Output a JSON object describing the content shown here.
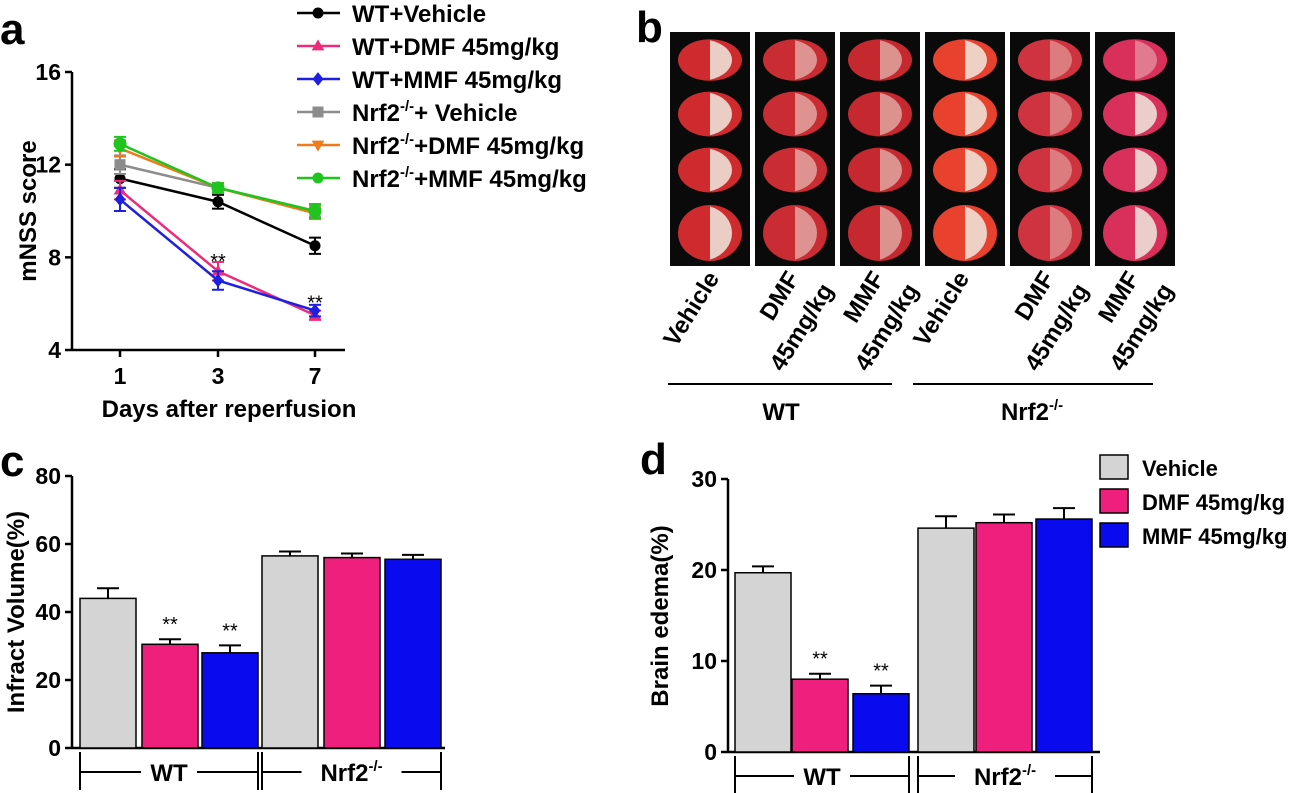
{
  "panels": {
    "a": {
      "letter": "a"
    },
    "b": {
      "letter": "b"
    },
    "c": {
      "letter": "c"
    },
    "d": {
      "letter": "d"
    }
  },
  "panel_b": {
    "wt_group_label": "WT",
    "ko_group_label": "Nrf2",
    "ko_group_sup": "-/-",
    "columns": [
      {
        "line1": "Vehicle",
        "line2": "",
        "tint": "#cf2a2e"
      },
      {
        "line1": "DMF",
        "line2": "45mg/kg",
        "tint": "#c92c32"
      },
      {
        "line1": "MMF",
        "line2": "45mg/kg",
        "tint": "#c5282f"
      },
      {
        "line1": "Vehicle",
        "line2": "",
        "tint": "#e8412e"
      },
      {
        "line1": "DMF",
        "line2": "45mg/kg",
        "tint": "#cf3340"
      },
      {
        "line1": "MMF",
        "line2": "45mg/kg",
        "tint": "#d8305a"
      }
    ],
    "colors": {
      "background": "#0a0a0a",
      "infarct": "#efeadf"
    }
  },
  "chart_data": [
    {
      "panel": "a",
      "type": "line",
      "ylabel": "mNSS  score",
      "xlabel": "Days after reperfusion",
      "categories": [
        "1",
        "3",
        "7"
      ],
      "ylim": [
        4,
        16
      ],
      "yticks": [
        "4",
        "8",
        "12",
        "16"
      ],
      "series": [
        {
          "name": "WT+Vehicle",
          "sup": "",
          "color": "#000000",
          "marker": "circle",
          "values": [
            11.4,
            10.4,
            8.5
          ],
          "errors": [
            0.4,
            0.3,
            0.35
          ]
        },
        {
          "name": "WT+DMF 45mg/kg",
          "sup": "",
          "color": "#ee2a7b",
          "marker": "triangle-up",
          "values": [
            10.9,
            7.4,
            5.5
          ],
          "errors": [
            0.4,
            0.4,
            0.2
          ]
        },
        {
          "name": "WT+MMF 45mg/kg",
          "sup": "",
          "color": "#1f1fe0",
          "marker": "diamond",
          "values": [
            10.5,
            7.0,
            5.7
          ],
          "errors": [
            0.5,
            0.4,
            0.25
          ]
        },
        {
          "name": "Nrf2",
          "sup": "-/-",
          "suffix": "+ Vehicle",
          "color": "#8c8c8c",
          "marker": "square",
          "values": [
            12.0,
            11.0,
            10.0
          ],
          "errors": [
            0.4,
            0.2,
            0.25
          ]
        },
        {
          "name": "Nrf2",
          "sup": "-/-",
          "suffix": "+DMF 45mg/kg",
          "color": "#f07a1c",
          "marker": "triangle-down",
          "values": [
            12.7,
            11.0,
            9.9
          ],
          "errors": [
            0.35,
            0.2,
            0.25
          ]
        },
        {
          "name": "Nrf2",
          "sup": "-/-",
          "suffix": "+MMF 45mg/kg",
          "color": "#1fc41f",
          "marker": "circle",
          "values": [
            12.9,
            11.0,
            10.0
          ],
          "errors": [
            0.3,
            0.2,
            0.3
          ]
        }
      ],
      "annotations": [
        {
          "category": "3",
          "y": 7.8,
          "text": "**"
        },
        {
          "category": "7",
          "y": 6.0,
          "text": "**"
        }
      ]
    },
    {
      "panel": "c",
      "type": "bar",
      "ylabel": "Infract Volume(%)",
      "ylim": [
        0,
        80
      ],
      "yticks": [
        "0",
        "20",
        "40",
        "60",
        "80"
      ],
      "groups": [
        {
          "label": "WT",
          "sup": ""
        },
        {
          "label": "Nrf2",
          "sup": "-/-"
        }
      ],
      "series": [
        {
          "name": "Vehicle",
          "color": "#d4d4d4",
          "values": [
            44,
            56.5
          ],
          "errors": [
            3,
            1.3
          ]
        },
        {
          "name": "DMF 45mg/kg",
          "color": "#ee1f7d",
          "values": [
            30.5,
            56
          ],
          "errors": [
            1.5,
            1.2
          ]
        },
        {
          "name": "MMF 45mg/kg",
          "color": "#0a0aee",
          "values": [
            28,
            55.5
          ],
          "errors": [
            2.2,
            1.3
          ]
        }
      ],
      "annotations": [
        {
          "group": 0,
          "series": 1,
          "text": "**"
        },
        {
          "group": 0,
          "series": 2,
          "text": "**"
        }
      ]
    },
    {
      "panel": "d",
      "type": "bar",
      "ylabel": "Brain  edema(%)",
      "ylim": [
        0,
        30
      ],
      "yticks": [
        "0",
        "10",
        "20",
        "30"
      ],
      "legend_position": "top-right",
      "groups": [
        {
          "label": "WT",
          "sup": ""
        },
        {
          "label": "Nrf2",
          "sup": "-/-"
        }
      ],
      "series": [
        {
          "name": "Vehicle",
          "color": "#d4d4d4",
          "values": [
            19.7,
            24.6
          ],
          "errors": [
            0.7,
            1.3
          ]
        },
        {
          "name": "DMF 45mg/kg",
          "color": "#ee1f7d",
          "values": [
            8.0,
            25.2
          ],
          "errors": [
            0.6,
            0.9
          ]
        },
        {
          "name": "MMF 45mg/kg",
          "color": "#0a0aee",
          "values": [
            6.4,
            25.6
          ],
          "errors": [
            0.9,
            1.2
          ]
        }
      ],
      "annotations": [
        {
          "group": 0,
          "series": 1,
          "text": "**"
        },
        {
          "group": 0,
          "series": 2,
          "text": "**"
        }
      ]
    }
  ]
}
